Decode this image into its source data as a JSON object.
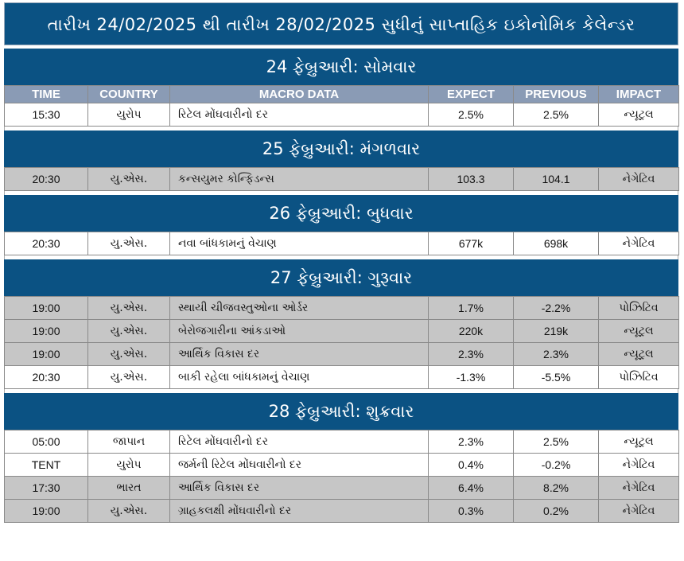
{
  "title": "તારીખ 24/02/2025 થી તારીખ 28/02/2025 સુધીનું સાપ્તાહિક ઇકોનોમિક કેલેન્ડર",
  "columns": [
    "TIME",
    "COUNTRY",
    "MACRO DATA",
    "EXPECT",
    "PREVIOUS",
    "IMPACT"
  ],
  "days": [
    {
      "header": "24 ફેબ્રુઆરી: સોમવાર",
      "rows": [
        {
          "time": "15:30",
          "country": "યુરોપ",
          "macro": "રિટેલ મોંઘવારીનો દર",
          "expect": "2.5%",
          "previous": "2.5%",
          "impact": "ન્યૂટ્રલ",
          "shade": "white"
        }
      ]
    },
    {
      "header": "25 ફેબ્રુઆરી: મંગળવાર",
      "rows": [
        {
          "time": "20:30",
          "country": "યુ.એસ.",
          "macro": "કન્સયુમર કોન્ફિડન્સ",
          "expect": "103.3",
          "previous": "104.1",
          "impact": "નેગેટિવ",
          "shade": "gray"
        }
      ]
    },
    {
      "header": "26 ફેબ્રુઆરી: બુધવાર",
      "rows": [
        {
          "time": "20:30",
          "country": "યુ.એસ.",
          "macro": "નવા બાંધકામનું વેચાણ",
          "expect": "677k",
          "previous": "698k",
          "impact": "નેગેટિવ",
          "shade": "white"
        }
      ]
    },
    {
      "header": "27 ફેબ્રુઆરી: ગુરૂવાર",
      "rows": [
        {
          "time": "19:00",
          "country": "યુ.એસ.",
          "macro": "સ્થાયી ચીજવસ્તુઓના ઓર્ડર",
          "expect": "1.7%",
          "previous": "-2.2%",
          "impact": "પોઝિટિવ",
          "shade": "gray"
        },
        {
          "time": "19:00",
          "country": "યુ.એસ.",
          "macro": "બેરોજગારીના આંકડાઓ",
          "expect": "220k",
          "previous": "219k",
          "impact": "ન્યૂટ્રલ",
          "shade": "gray"
        },
        {
          "time": "19:00",
          "country": "યુ.એસ.",
          "macro": "આર્થિક વિકાસ દર",
          "expect": "2.3%",
          "previous": "2.3%",
          "impact": "ન્યૂટ્રલ",
          "shade": "gray"
        },
        {
          "time": "20:30",
          "country": "યુ.એસ.",
          "macro": "બાકી રહેલા બાંધકામનું વેચાણ",
          "expect": "-1.3%",
          "previous": "-5.5%",
          "impact": "પોઝિટિવ",
          "shade": "white"
        }
      ]
    },
    {
      "header": "28 ફેબ્રુઆરી: શુક્રવાર",
      "rows": [
        {
          "time": "05:00",
          "country": "જાપાન",
          "macro": "રિટેલ મોંઘવારીનો દર",
          "expect": "2.3%",
          "previous": "2.5%",
          "impact": "ન્યૂટ્રલ",
          "shade": "white"
        },
        {
          "time": "TENT",
          "country": "યુરોપ",
          "macro": "જર્મની રિટેલ મોંઘવારીનો દર",
          "expect": "0.4%",
          "previous": "-0.2%",
          "impact": "નેગેટિવ",
          "shade": "white"
        },
        {
          "time": "17:30",
          "country": "ભારત",
          "macro": "આર્થિક વિકાસ દર",
          "expect": "6.4%",
          "previous": "8.2%",
          "impact": "નેગેટિવ",
          "shade": "gray"
        },
        {
          "time": "19:00",
          "country": "યુ.એસ.",
          "macro": "ગ્રાહકલક્ષી મોંઘવારીનો દર",
          "expect": "0.3%",
          "previous": "0.2%",
          "impact": "નેગેટિવ",
          "shade": "gray"
        }
      ]
    }
  ],
  "colors": {
    "header_bg": "#0b5283",
    "column_header_bg": "#8a9bb5",
    "gray_row": "#c6c6c6",
    "white_row": "#ffffff"
  }
}
